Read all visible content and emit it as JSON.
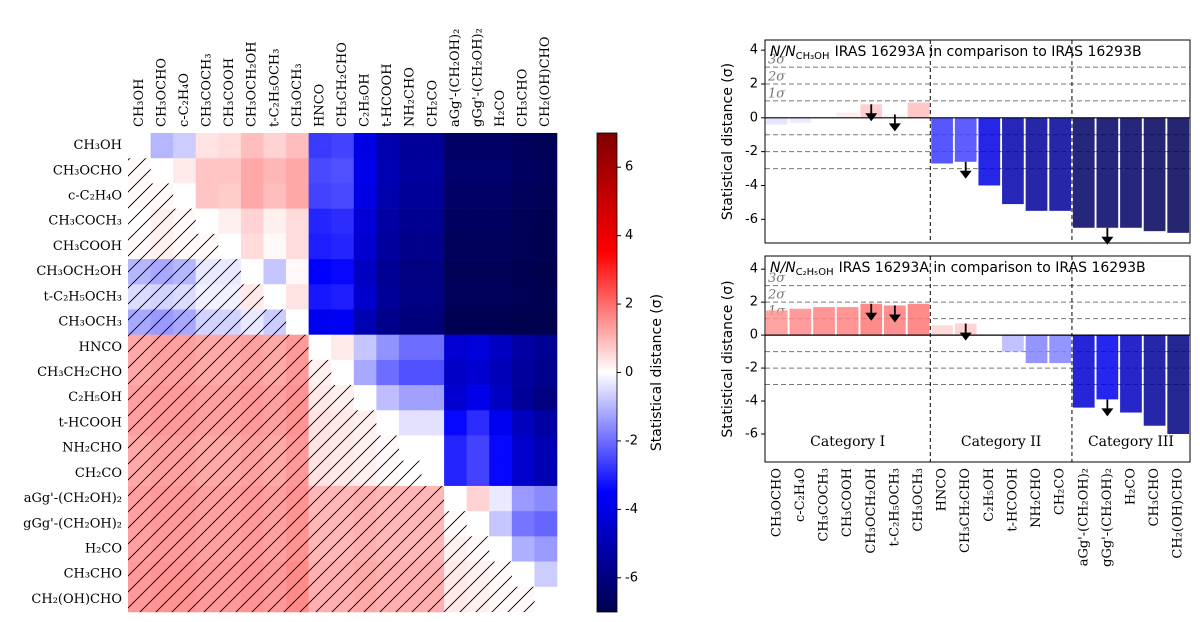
{
  "chart_data": [
    {
      "type": "heatmap",
      "labels": [
        "CH₃OH",
        "CH₃OCHO",
        "c-C₂H₄O",
        "CH₃COCH₃",
        "CH₃COOH",
        "CH₃OCH₂OH",
        "t-C₂H₅OCH₃",
        "CH₃OCH₃",
        "HNCO",
        "CH₃CH₂CHO",
        "C₂H₅OH",
        "t-HCOOH",
        "NH₂CHO",
        "CH₂CO",
        "aGg'-(CH₂OH)₂",
        "gGg'-(CH₂OH)₂",
        "H₂CO",
        "CH₃CHO",
        "CH₂(OH)CHO"
      ],
      "values": [
        [
          0,
          -1.0,
          -0.7,
          0.4,
          0.5,
          0.9,
          0.6,
          0.9,
          -2.7,
          -2.6,
          -4.0,
          -5.1,
          -5.5,
          -5.5,
          -6.5,
          -6.5,
          -6.5,
          -6.7,
          -6.8
        ],
        [
          0.1,
          0,
          0.3,
          0.8,
          0.8,
          1.2,
          1.0,
          1.2,
          -2.5,
          -2.4,
          -3.9,
          -5.0,
          -5.4,
          -5.4,
          -6.4,
          -6.4,
          -6.4,
          -6.6,
          -6.7
        ],
        [
          0.1,
          0.1,
          0,
          0.8,
          0.7,
          1.2,
          0.9,
          1.2,
          -2.6,
          -2.5,
          -4.0,
          -5.1,
          -5.5,
          -5.5,
          -6.5,
          -6.5,
          -6.5,
          -6.7,
          -6.8
        ],
        [
          0.0,
          0.2,
          0.1,
          0,
          0.2,
          0.6,
          0.2,
          0.5,
          -3.0,
          -2.9,
          -4.3,
          -5.3,
          -5.7,
          -5.7,
          -6.6,
          -6.6,
          -6.6,
          -6.8,
          -6.9
        ],
        [
          0.1,
          0.2,
          0.1,
          0.1,
          0,
          0.5,
          0.1,
          0.5,
          -3.1,
          -3.0,
          -4.4,
          -5.4,
          -5.8,
          -5.8,
          -6.7,
          -6.7,
          -6.7,
          -6.8,
          -6.9
        ],
        [
          -1.0,
          -1.2,
          -1.0,
          -0.3,
          -0.3,
          0,
          -0.8,
          0.1,
          -3.5,
          -3.4,
          -4.7,
          -5.6,
          -6.0,
          -6.0,
          -6.8,
          -6.8,
          -6.8,
          -6.9,
          -7.0
        ],
        [
          -0.5,
          -0.6,
          -0.5,
          -0.2,
          -0.2,
          0.3,
          0,
          0.4,
          -3.2,
          -3.1,
          -4.5,
          -5.5,
          -5.9,
          -5.9,
          -6.7,
          -6.7,
          -6.7,
          -6.8,
          -6.9
        ],
        [
          -1.2,
          -1.4,
          -1.2,
          -0.6,
          -0.6,
          -0.3,
          -0.7,
          0,
          -3.8,
          -3.7,
          -5.0,
          -5.8,
          -6.1,
          -6.1,
          -6.9,
          -6.9,
          -6.9,
          -7.0,
          -7.0
        ],
        [
          1.2,
          1.3,
          1.3,
          1.2,
          1.2,
          1.3,
          1.2,
          1.4,
          0,
          0.3,
          -0.8,
          -1.5,
          -2.0,
          -2.0,
          -4.4,
          -4.2,
          -4.7,
          -5.3,
          -5.6
        ],
        [
          1.2,
          1.3,
          1.3,
          1.2,
          1.2,
          1.3,
          1.2,
          1.4,
          0.2,
          0,
          -1.2,
          -2.0,
          -2.4,
          -2.4,
          -4.6,
          -4.4,
          -4.9,
          -5.4,
          -5.7
        ],
        [
          1.3,
          1.4,
          1.4,
          1.3,
          1.3,
          1.4,
          1.3,
          1.5,
          0.3,
          0.2,
          0,
          -0.9,
          -1.3,
          -1.3,
          -4.4,
          -3.9,
          -4.7,
          -5.5,
          -6.0
        ],
        [
          1.3,
          1.4,
          1.4,
          1.3,
          1.3,
          1.4,
          1.3,
          1.5,
          0.4,
          0.3,
          0.2,
          0,
          -0.4,
          -0.4,
          -3.4,
          -2.9,
          -3.8,
          -4.8,
          -5.3
        ],
        [
          1.2,
          1.3,
          1.3,
          1.2,
          1.2,
          1.3,
          1.2,
          1.4,
          0.4,
          0.3,
          0.2,
          0.1,
          0,
          0.0,
          -3.0,
          -2.6,
          -3.4,
          -4.5,
          -5.0
        ],
        [
          1.2,
          1.3,
          1.3,
          1.2,
          1.2,
          1.3,
          1.2,
          1.4,
          0.4,
          0.3,
          0.2,
          0.1,
          0.0,
          0,
          -3.0,
          -2.6,
          -3.4,
          -4.5,
          -5.0
        ],
        [
          1.3,
          1.4,
          1.4,
          1.3,
          1.3,
          1.4,
          1.3,
          1.5,
          1.0,
          1.0,
          1.1,
          1.0,
          1.0,
          1.0,
          0,
          0.6,
          -0.3,
          -1.4,
          -1.6
        ],
        [
          1.3,
          1.4,
          1.4,
          1.3,
          1.3,
          1.4,
          1.3,
          1.5,
          1.0,
          1.0,
          1.1,
          1.0,
          1.0,
          1.0,
          0.1,
          0,
          -0.8,
          -1.9,
          -2.1
        ],
        [
          1.3,
          1.4,
          1.4,
          1.3,
          1.3,
          1.4,
          1.3,
          1.5,
          1.0,
          1.0,
          1.1,
          1.0,
          1.0,
          1.0,
          0.2,
          0.1,
          0,
          -1.1,
          -1.4
        ],
        [
          1.4,
          1.5,
          1.5,
          1.4,
          1.4,
          1.5,
          1.4,
          1.6,
          1.1,
          1.1,
          1.2,
          1.1,
          1.1,
          1.1,
          0.3,
          0.2,
          0.1,
          0,
          -0.7
        ],
        [
          1.4,
          1.5,
          1.5,
          1.4,
          1.4,
          1.5,
          1.4,
          1.6,
          1.1,
          1.1,
          1.2,
          1.1,
          1.1,
          1.1,
          0.3,
          0.2,
          0.1,
          0.1,
          0
        ]
      ],
      "zlim": [
        -7,
        7
      ],
      "zticks": [
        -6,
        -4,
        -2,
        0,
        2,
        4,
        6
      ],
      "colormap": "seismic",
      "hatch": "lower",
      "colorbar_label": "Statistical distance (σ)"
    },
    {
      "type": "bar",
      "title": {
        "prefix": "N/N",
        "subscript": "CH₃OH",
        "text": "IRAS 16293A in comparison to IRAS 16293B"
      },
      "ylabel": "Statistical distance (σ)",
      "values": [
        -0.4,
        -0.3,
        0.1,
        0.3,
        0.8,
        0.2,
        0.9,
        -2.7,
        -2.6,
        -4.0,
        -5.1,
        -5.5,
        -5.5,
        -6.5,
        -6.5,
        -6.5,
        -6.7,
        -6.8
      ],
      "upper_limits": [
        false,
        false,
        false,
        false,
        true,
        true,
        false,
        false,
        true,
        false,
        false,
        false,
        false,
        false,
        true,
        false,
        false,
        false
      ],
      "ylim": [
        -7.4,
        4.6
      ],
      "yticks": [
        -6,
        -4,
        -2,
        0,
        2,
        4
      ],
      "sigma_levels": [
        1,
        2,
        3
      ],
      "sigma_labels": [
        "1σ",
        "2σ",
        "3σ"
      ],
      "negative_sigma_levels": [
        -1,
        -2,
        -3
      ]
    },
    {
      "type": "bar",
      "title": {
        "prefix": "N/N",
        "subscript": "C₂H₅OH",
        "text": "IRAS 16293A in comparison to IRAS 16293B"
      },
      "ylabel": "Statistical distance (σ)",
      "groups": [
        {
          "label": "Category I",
          "categories": [
            "CH₃OCHO",
            "c-C₂H₄O",
            "CH₃COCH₃",
            "CH₃COOH",
            "CH₃OCH₂OH",
            "t-C₂H₅OCH₃",
            "CH₃OCH₃"
          ]
        },
        {
          "label": "Category II",
          "categories": [
            "HNCO",
            "CH₃CH₂CHO",
            "C₂H₅OH",
            "t-HCOOH",
            "NH₂CHO",
            "CH₂CO"
          ]
        },
        {
          "label": "Category III",
          "categories": [
            "aGg'-(CH₂OH)₂",
            "gGg'-(CH₂OH)₂",
            "H₂CO",
            "CH₃CHO",
            "CH₂(OH)CHO"
          ]
        }
      ],
      "values": [
        1.5,
        1.6,
        1.7,
        1.7,
        1.9,
        1.8,
        1.9,
        0.6,
        0.7,
        0.0,
        -1.0,
        -1.7,
        -1.7,
        -4.4,
        -3.9,
        -4.7,
        -5.5,
        -6.0
      ],
      "upper_limits": [
        false,
        false,
        false,
        false,
        true,
        true,
        false,
        false,
        true,
        false,
        false,
        false,
        false,
        false,
        true,
        false,
        false,
        false
      ],
      "ylim": [
        -7.7,
        4.8
      ],
      "yticks": [
        -6,
        -4,
        -2,
        0,
        2,
        4
      ],
      "sigma_levels": [
        1,
        2,
        3
      ],
      "sigma_labels": [
        "1σ",
        "2σ",
        "3σ"
      ],
      "negative_sigma_levels": [
        -1,
        -2,
        -3
      ]
    }
  ]
}
